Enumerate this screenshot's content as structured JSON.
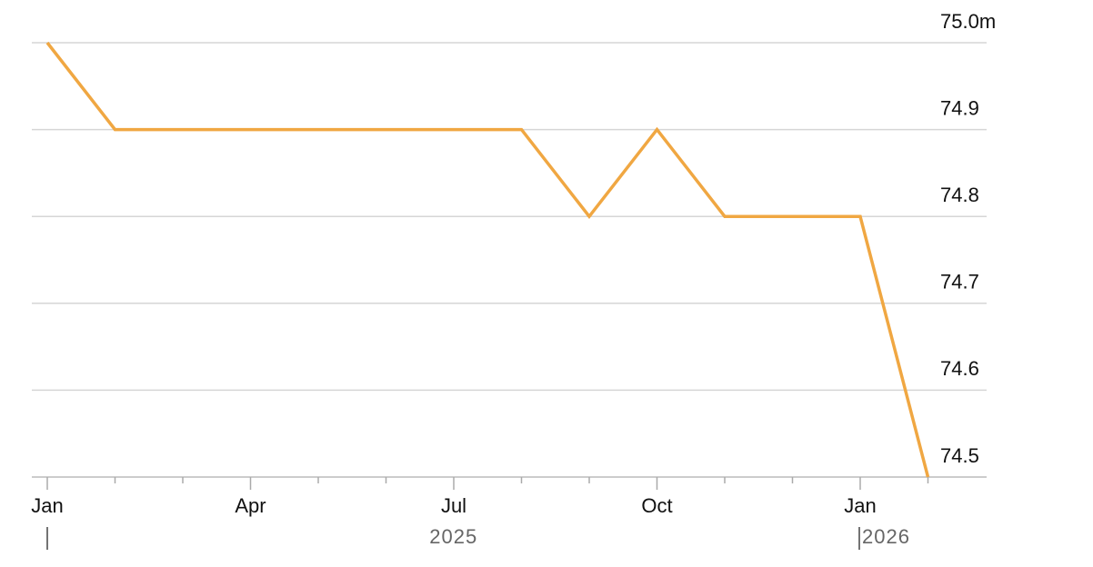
{
  "chart_data": {
    "type": "line",
    "categories": [
      "Jan",
      null,
      null,
      "Apr",
      null,
      null,
      "Jul",
      null,
      null,
      "Oct",
      null,
      null,
      "Jan",
      null
    ],
    "series": [
      {
        "color": "#f0a742",
        "values": [
          75.0,
          74.9,
          74.9,
          74.9,
          74.9,
          74.9,
          74.9,
          74.9,
          74.8,
          74.9,
          74.8,
          74.8,
          74.8,
          74.5
        ]
      }
    ],
    "year_labels": [
      {
        "text": "2025",
        "start": 0,
        "end": 11
      },
      {
        "text": "2026",
        "start": 12,
        "end": 13
      }
    ],
    "ylim": [
      74.5,
      75.0
    ],
    "yticks": [
      74.5,
      74.6,
      74.7,
      74.8,
      74.9,
      {
        "value": 75.0,
        "label": "75.0m"
      }
    ],
    "grid": true
  }
}
